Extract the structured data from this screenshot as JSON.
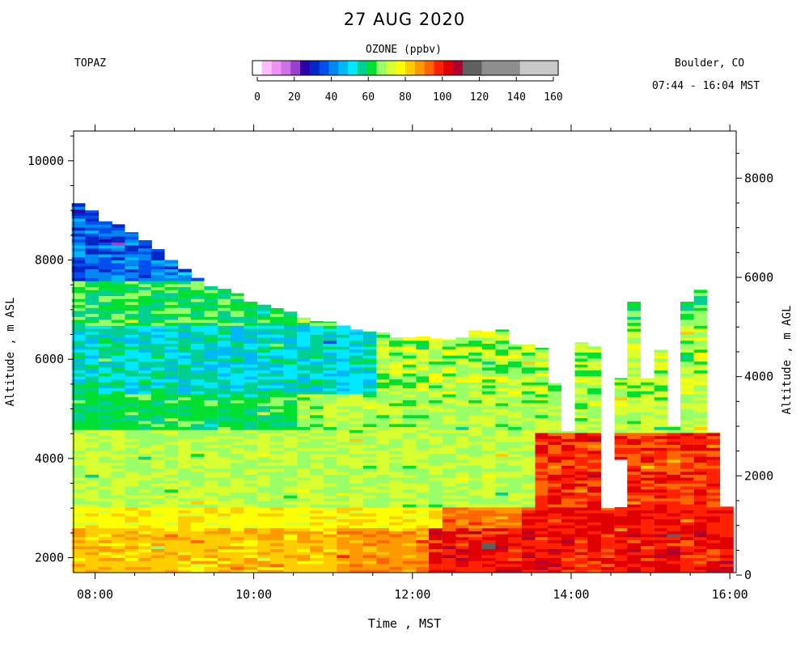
{
  "chart_data": {
    "type": "heatmap",
    "title": "27 AUG 2020",
    "instrument": "TOPAZ",
    "location": "Boulder, CO",
    "time_range": "07:44 - 16:04 MST",
    "xlabel": "Time , MST",
    "ylabel_left": "Altitude , m ASL",
    "ylabel_right": "Altitude , m AGL",
    "x_range_hours": [
      7.73,
      16.08
    ],
    "x_ticks": [
      {
        "value": 8,
        "label": "08:00"
      },
      {
        "value": 10,
        "label": "10:00"
      },
      {
        "value": 12,
        "label": "12:00"
      },
      {
        "value": 14,
        "label": "14:00"
      },
      {
        "value": 16,
        "label": "16:00"
      }
    ],
    "y_range_asl": [
      1700,
      10600
    ],
    "y_ticks_left": [
      2000,
      4000,
      6000,
      8000,
      10000
    ],
    "y_ticks_right": [
      0,
      2000,
      4000,
      6000,
      8000
    ],
    "ground_altitude_asl": 1650,
    "colorbar": {
      "title": "OZONE (ppbv)",
      "range": [
        0,
        160
      ],
      "tick_values": [
        0,
        20,
        40,
        60,
        80,
        100,
        120,
        140,
        160
      ],
      "tick_labels": [
        "0",
        "20",
        "40",
        "60",
        "80",
        "100",
        "120",
        "140",
        "160"
      ],
      "levels": [
        {
          "from": 0,
          "to": 5,
          "color": "#ffffff"
        },
        {
          "from": 5,
          "to": 10,
          "color": "#ffbbff"
        },
        {
          "from": 10,
          "to": 15,
          "color": "#f090f0"
        },
        {
          "from": 15,
          "to": 20,
          "color": "#d070e8"
        },
        {
          "from": 20,
          "to": 25,
          "color": "#9a40d0"
        },
        {
          "from": 25,
          "to": 30,
          "color": "#2a00a8"
        },
        {
          "from": 30,
          "to": 35,
          "color": "#0028c8"
        },
        {
          "from": 35,
          "to": 40,
          "color": "#0050f0"
        },
        {
          "from": 40,
          "to": 45,
          "color": "#0088f0"
        },
        {
          "from": 45,
          "to": 50,
          "color": "#00b8f8"
        },
        {
          "from": 50,
          "to": 55,
          "color": "#00e8ff"
        },
        {
          "from": 55,
          "to": 60,
          "color": "#00d090"
        },
        {
          "from": 60,
          "to": 65,
          "color": "#00e030"
        },
        {
          "from": 65,
          "to": 70,
          "color": "#99ff66"
        },
        {
          "from": 70,
          "to": 75,
          "color": "#d8ff30"
        },
        {
          "from": 75,
          "to": 80,
          "color": "#ffff00"
        },
        {
          "from": 80,
          "to": 85,
          "color": "#ffcc00"
        },
        {
          "from": 85,
          "to": 90,
          "color": "#ff9900"
        },
        {
          "from": 90,
          "to": 95,
          "color": "#ff6600"
        },
        {
          "from": 95,
          "to": 100,
          "color": "#ff2200"
        },
        {
          "from": 100,
          "to": 105,
          "color": "#e00000"
        },
        {
          "from": 105,
          "to": 110,
          "color": "#b00030"
        },
        {
          "from": 110,
          "to": 120,
          "color": "#606060"
        },
        {
          "from": 120,
          "to": 140,
          "color": "#8e8e8e"
        },
        {
          "from": 140,
          "to": 160,
          "color": "#c8c8c8"
        }
      ]
    },
    "profiles": [
      {
        "time": 7.79,
        "top": 9150
      },
      {
        "time": 7.96,
        "top": 9000
      },
      {
        "time": 8.13,
        "top": 8780
      },
      {
        "time": 8.29,
        "top": 8720
      },
      {
        "time": 8.46,
        "top": 8560
      },
      {
        "time": 8.63,
        "top": 8400
      },
      {
        "time": 8.79,
        "top": 8220
      },
      {
        "time": 8.96,
        "top": 8000
      },
      {
        "time": 9.13,
        "top": 7820
      },
      {
        "time": 9.29,
        "top": 7640
      },
      {
        "time": 9.46,
        "top": 7470
      },
      {
        "time": 9.63,
        "top": 7420
      },
      {
        "time": 9.79,
        "top": 7330
      },
      {
        "time": 9.96,
        "top": 7160
      },
      {
        "time": 10.13,
        "top": 7100
      },
      {
        "time": 10.29,
        "top": 7030
      },
      {
        "time": 10.46,
        "top": 6960
      },
      {
        "time": 10.63,
        "top": 6840
      },
      {
        "time": 10.79,
        "top": 6770
      },
      {
        "time": 10.96,
        "top": 6760
      },
      {
        "time": 11.13,
        "top": 6680
      },
      {
        "time": 11.29,
        "top": 6600
      },
      {
        "time": 11.46,
        "top": 6560
      },
      {
        "time": 11.63,
        "top": 6540
      },
      {
        "time": 11.79,
        "top": 6440
      },
      {
        "time": 11.96,
        "top": 6440
      },
      {
        "time": 12.13,
        "top": 6460
      },
      {
        "time": 12.29,
        "top": 6420
      },
      {
        "time": 12.46,
        "top": 6400
      },
      {
        "time": 12.63,
        "top": 6440
      },
      {
        "time": 12.79,
        "top": 6580
      },
      {
        "time": 12.96,
        "top": 6560
      },
      {
        "time": 13.13,
        "top": 6600
      },
      {
        "time": 13.29,
        "top": 6300
      },
      {
        "time": 13.46,
        "top": 6300
      },
      {
        "time": 13.63,
        "top": 6230
      },
      {
        "time": 13.79,
        "top": 5520
      },
      {
        "time": 13.96,
        "top": 4550
      },
      {
        "time": 14.13,
        "top": 6340
      },
      {
        "time": 14.29,
        "top": 6260
      },
      {
        "time": 14.46,
        "top": 3000
      },
      {
        "time": 14.63,
        "top": 5620
      },
      {
        "time": 14.79,
        "top": 7160
      },
      {
        "time": 14.96,
        "top": 5620
      },
      {
        "time": 15.13,
        "top": 6190
      },
      {
        "time": 15.29,
        "top": 4660
      },
      {
        "time": 15.46,
        "top": 7160
      },
      {
        "time": 15.63,
        "top": 7400
      },
      {
        "time": 15.79,
        "top": 4530
      },
      {
        "time": 15.96,
        "top": 3030
      }
    ],
    "gaps": [
      {
        "time": 14.63,
        "from": 3000,
        "to": 3980
      }
    ],
    "ozone_structure_ppbv": [
      {
        "altitude_range": [
          7600,
          8600
        ],
        "time_range": [
          7.73,
          9.5
        ],
        "ozone": [
          30,
          45
        ]
      },
      {
        "altitude_range": [
          5200,
          6600
        ],
        "time_range": [
          7.73,
          11.5
        ],
        "ozone": [
          45,
          58
        ]
      },
      {
        "altitude_range": [
          4600,
          5300
        ],
        "time_range": [
          7.73,
          10.5
        ],
        "ozone": [
          60,
          64
        ]
      },
      {
        "altitude_range": [
          3000,
          4600
        ],
        "time_range": [
          7.73,
          13.0
        ],
        "ozone": [
          65,
          74
        ]
      },
      {
        "altitude_range": [
          1700,
          3000
        ],
        "time_range": [
          7.73,
          12.0
        ],
        "ozone": [
          75,
          88
        ]
      },
      {
        "altitude_range": [
          1700,
          2600
        ],
        "time_range": [
          12.0,
          16.08
        ],
        "ozone": [
          95,
          108
        ]
      },
      {
        "altitude_range": [
          2600,
          4500
        ],
        "time_range": [
          13.5,
          16.08
        ],
        "ozone": [
          88,
          104
        ]
      }
    ]
  }
}
